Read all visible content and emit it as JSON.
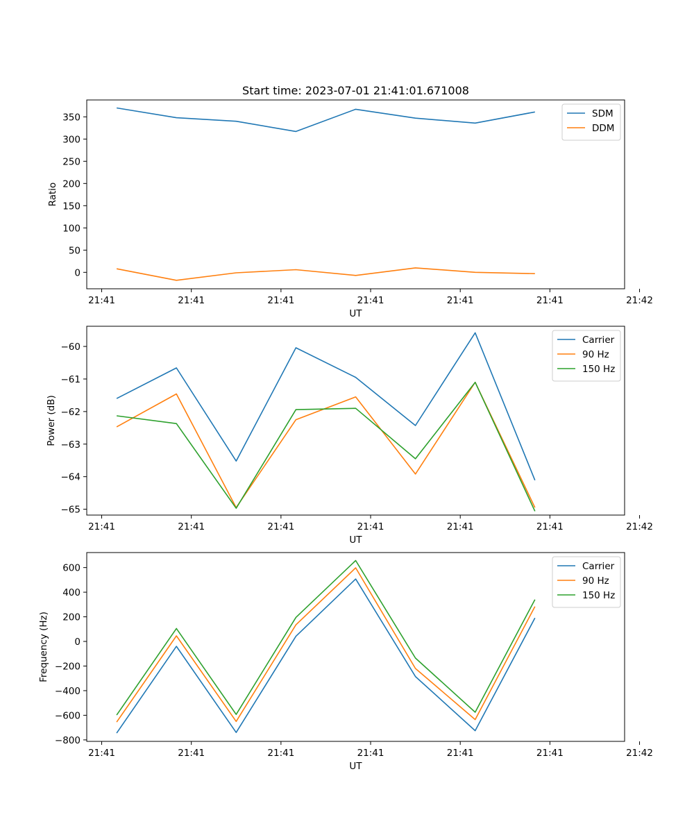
{
  "chart_data": [
    {
      "type": "line",
      "title": "Start time: 2023-07-01 21:41:01.671008",
      "xlabel": "UT",
      "ylabel": "Ratio",
      "x": [
        0,
        1,
        2,
        3,
        4,
        5,
        6,
        7
      ],
      "xlim": [
        -0.5,
        8.5
      ],
      "xticks": [
        -0.25,
        1.25,
        2.75,
        4.25,
        5.75,
        7.25,
        8.75
      ],
      "xtick_labels": [
        "21:41",
        "21:41",
        "21:41",
        "21:41",
        "21:41",
        "21:41",
        "21:42"
      ],
      "ylim": [
        -37,
        388
      ],
      "yticks": [
        0,
        50,
        100,
        150,
        200,
        250,
        300,
        350
      ],
      "ytick_labels": [
        "0",
        "50",
        "100",
        "150",
        "200",
        "250",
        "300",
        "350"
      ],
      "legend": "top-right",
      "series": [
        {
          "name": "SDM",
          "color": "#1f77b4",
          "values": [
            370,
            348,
            340,
            317,
            367,
            347,
            336,
            361
          ]
        },
        {
          "name": "DDM",
          "color": "#ff7f0e",
          "values": [
            8,
            -18,
            -1,
            6,
            -7,
            10,
            0,
            -3
          ]
        }
      ]
    },
    {
      "type": "line",
      "title": "",
      "xlabel": "UT",
      "ylabel": "Power (dB)",
      "x": [
        0,
        1,
        2,
        3,
        4,
        5,
        6,
        7
      ],
      "xlim": [
        -0.5,
        8.5
      ],
      "xticks": [
        -0.25,
        1.25,
        2.75,
        4.25,
        5.75,
        7.25,
        8.75
      ],
      "xtick_labels": [
        "21:41",
        "21:41",
        "21:41",
        "21:41",
        "21:41",
        "21:41",
        "21:42"
      ],
      "ylim": [
        -65.18,
        -59.38
      ],
      "yticks": [
        -65,
        -64,
        -63,
        -62,
        -61,
        -60
      ],
      "ytick_labels": [
        "−65",
        "−64",
        "−63",
        "−62",
        "−61",
        "−60"
      ],
      "legend": "top-right",
      "series": [
        {
          "name": "Carrier",
          "color": "#1f77b4",
          "values": [
            -61.6,
            -60.66,
            -63.52,
            -60.04,
            -60.95,
            -62.43,
            -59.58,
            -64.11
          ]
        },
        {
          "name": "90 Hz",
          "color": "#ff7f0e",
          "values": [
            -62.47,
            -61.46,
            -64.95,
            -62.25,
            -61.55,
            -63.92,
            -61.1,
            -64.95
          ]
        },
        {
          "name": "150 Hz",
          "color": "#2ca02c",
          "values": [
            -62.13,
            -62.37,
            -64.97,
            -61.94,
            -61.9,
            -63.45,
            -61.1,
            -65.06
          ]
        }
      ]
    },
    {
      "type": "line",
      "title": "",
      "xlabel": "UT",
      "ylabel": "Frequency (Hz)",
      "x": [
        0,
        1,
        2,
        3,
        4,
        5,
        6,
        7
      ],
      "xlim": [
        -0.5,
        8.5
      ],
      "xticks": [
        -0.25,
        1.25,
        2.75,
        4.25,
        5.75,
        7.25,
        8.75
      ],
      "xtick_labels": [
        "21:41",
        "21:41",
        "21:41",
        "21:41",
        "21:41",
        "21:41",
        "21:42"
      ],
      "ylim": [
        -812,
        722
      ],
      "yticks": [
        -800,
        -600,
        -400,
        -200,
        0,
        200,
        400,
        600
      ],
      "ytick_labels": [
        "−800",
        "−600",
        "−400",
        "−200",
        "0",
        "200",
        "400",
        "600"
      ],
      "legend": "top-right",
      "series": [
        {
          "name": "Carrier",
          "color": "#1f77b4",
          "values": [
            -745,
            -40,
            -740,
            42,
            507,
            -285,
            -725,
            190
          ]
        },
        {
          "name": "90 Hz",
          "color": "#ff7f0e",
          "values": [
            -655,
            45,
            -650,
            135,
            598,
            -220,
            -635,
            283
          ]
        },
        {
          "name": "150 Hz",
          "color": "#2ca02c",
          "values": [
            -598,
            105,
            -593,
            195,
            657,
            -135,
            -575,
            340
          ]
        }
      ]
    }
  ]
}
